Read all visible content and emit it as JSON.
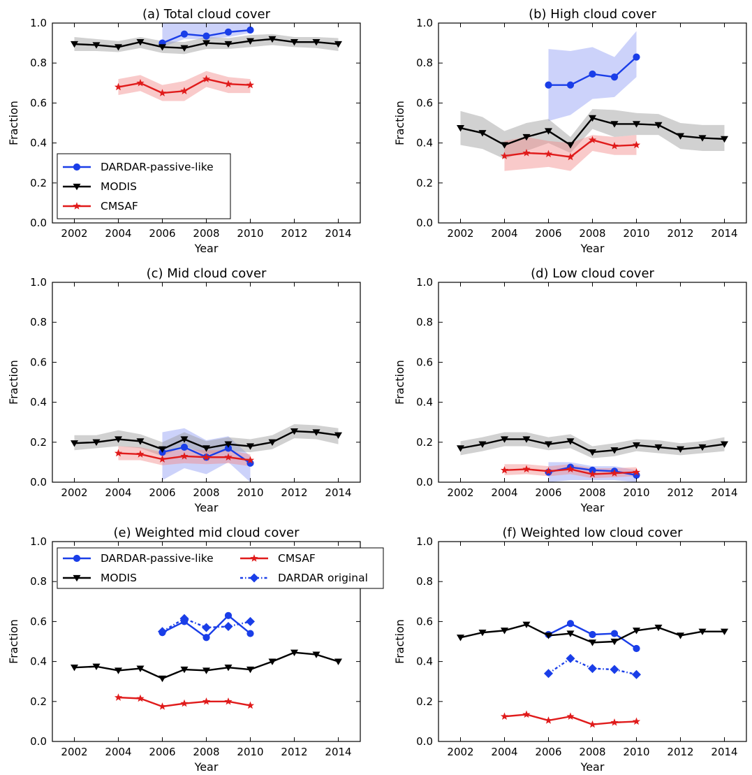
{
  "colors": {
    "dardar": "#1a3ee8",
    "modis": "#000000",
    "cmsaf": "#e01b1b",
    "dardar_band": "#8f9cf5",
    "modis_band": "#9a9a9a",
    "cmsaf_band": "#f28a8a"
  },
  "y_ticks": [
    "0.0",
    "0.2",
    "0.4",
    "0.6",
    "0.8",
    "1.0"
  ],
  "x_ticks": [
    "2002",
    "2004",
    "2006",
    "2008",
    "2010",
    "2012",
    "2014"
  ],
  "legend_top": {
    "dardar": "DARDAR-passive-like",
    "modis": "MODIS",
    "cmsaf": "CMSAF"
  },
  "legend_bottom": {
    "dardar": "DARDAR-passive-like",
    "modis": "MODIS",
    "cmsaf": "CMSAF",
    "dardar_original": "DARDAR original"
  },
  "chart_data": [
    {
      "type": "line",
      "title": "(a) Total cloud cover",
      "xlabel": "Year",
      "ylabel": "Fraction",
      "xlim": [
        2001,
        2015
      ],
      "ylim": [
        0,
        1
      ],
      "legend": "lower-left",
      "series": [
        {
          "name": "DARDAR-passive-like",
          "x": [
            2006,
            2007,
            2008,
            2009,
            2010
          ],
          "values": [
            0.9,
            0.945,
            0.935,
            0.955,
            0.965
          ],
          "lower": [
            0.88,
            0.92,
            0.92,
            0.93,
            0.95
          ],
          "upper": [
            1.0,
            1.0,
            1.0,
            1.0,
            1.0
          ]
        },
        {
          "name": "MODIS",
          "x": [
            2002,
            2003,
            2004,
            2005,
            2006,
            2007,
            2008,
            2009,
            2010,
            2011,
            2012,
            2013,
            2014
          ],
          "values": [
            0.895,
            0.89,
            0.88,
            0.905,
            0.88,
            0.875,
            0.9,
            0.895,
            0.91,
            0.92,
            0.905,
            0.905,
            0.895
          ],
          "lower": [
            0.86,
            0.86,
            0.855,
            0.875,
            0.85,
            0.845,
            0.87,
            0.87,
            0.88,
            0.89,
            0.88,
            0.875,
            0.86
          ],
          "upper": [
            0.93,
            0.92,
            0.91,
            0.93,
            0.91,
            0.905,
            0.93,
            0.925,
            0.94,
            0.945,
            0.93,
            0.93,
            0.925
          ]
        },
        {
          "name": "CMSAF",
          "x": [
            2004,
            2005,
            2006,
            2007,
            2008,
            2009,
            2010
          ],
          "values": [
            0.68,
            0.7,
            0.65,
            0.66,
            0.72,
            0.695,
            0.69
          ],
          "lower": [
            0.64,
            0.66,
            0.61,
            0.61,
            0.68,
            0.65,
            0.65
          ],
          "upper": [
            0.72,
            0.74,
            0.69,
            0.71,
            0.76,
            0.73,
            0.72
          ]
        }
      ]
    },
    {
      "type": "line",
      "title": "(b) High cloud cover",
      "xlabel": "Year",
      "ylabel": "Fraction",
      "xlim": [
        2001,
        2015
      ],
      "ylim": [
        0,
        1
      ],
      "series": [
        {
          "name": "DARDAR-passive-like",
          "x": [
            2006,
            2007,
            2008,
            2009,
            2010
          ],
          "values": [
            0.69,
            0.69,
            0.745,
            0.73,
            0.83
          ],
          "lower": [
            0.51,
            0.54,
            0.62,
            0.63,
            0.73
          ],
          "upper": [
            0.87,
            0.86,
            0.88,
            0.83,
            0.96
          ]
        },
        {
          "name": "MODIS",
          "x": [
            2002,
            2003,
            2004,
            2005,
            2006,
            2007,
            2008,
            2009,
            2010,
            2011,
            2012,
            2013,
            2014
          ],
          "values": [
            0.475,
            0.45,
            0.39,
            0.43,
            0.46,
            0.39,
            0.525,
            0.495,
            0.495,
            0.49,
            0.435,
            0.425,
            0.42
          ],
          "lower": [
            0.39,
            0.37,
            0.32,
            0.36,
            0.4,
            0.35,
            0.47,
            0.43,
            0.44,
            0.44,
            0.37,
            0.36,
            0.36
          ],
          "upper": [
            0.56,
            0.53,
            0.46,
            0.5,
            0.52,
            0.43,
            0.57,
            0.565,
            0.55,
            0.545,
            0.5,
            0.49,
            0.49
          ]
        },
        {
          "name": "CMSAF",
          "x": [
            2004,
            2005,
            2006,
            2007,
            2008,
            2009,
            2010
          ],
          "values": [
            0.335,
            0.35,
            0.345,
            0.33,
            0.415,
            0.385,
            0.39
          ],
          "lower": [
            0.26,
            0.27,
            0.28,
            0.26,
            0.36,
            0.34,
            0.34
          ],
          "upper": [
            0.41,
            0.43,
            0.41,
            0.4,
            0.44,
            0.43,
            0.44
          ]
        }
      ]
    },
    {
      "type": "line",
      "title": "(c) Mid cloud cover",
      "xlabel": "Year",
      "ylabel": "Fraction",
      "xlim": [
        2001,
        2015
      ],
      "ylim": [
        0,
        1
      ],
      "series": [
        {
          "name": "DARDAR-passive-like",
          "x": [
            2006,
            2007,
            2008,
            2009,
            2010
          ],
          "values": [
            0.15,
            0.175,
            0.125,
            0.17,
            0.095
          ],
          "lower": [
            0.01,
            0.07,
            0.04,
            0.1,
            0.0
          ],
          "upper": [
            0.25,
            0.27,
            0.21,
            0.23,
            0.13
          ]
        },
        {
          "name": "MODIS",
          "x": [
            2002,
            2003,
            2004,
            2005,
            2006,
            2007,
            2008,
            2009,
            2010,
            2011,
            2012,
            2013,
            2014
          ],
          "values": [
            0.195,
            0.2,
            0.215,
            0.205,
            0.165,
            0.215,
            0.17,
            0.19,
            0.18,
            0.2,
            0.255,
            0.25,
            0.235
          ],
          "lower": [
            0.16,
            0.17,
            0.18,
            0.17,
            0.13,
            0.18,
            0.14,
            0.155,
            0.15,
            0.165,
            0.22,
            0.215,
            0.19
          ],
          "upper": [
            0.235,
            0.235,
            0.26,
            0.24,
            0.2,
            0.25,
            0.205,
            0.225,
            0.215,
            0.235,
            0.29,
            0.285,
            0.27
          ]
        },
        {
          "name": "CMSAF",
          "x": [
            2004,
            2005,
            2006,
            2007,
            2008,
            2009,
            2010
          ],
          "values": [
            0.145,
            0.14,
            0.115,
            0.13,
            0.125,
            0.125,
            0.11
          ],
          "lower": [
            0.11,
            0.11,
            0.085,
            0.095,
            0.09,
            0.095,
            0.08
          ],
          "upper": [
            0.18,
            0.175,
            0.15,
            0.165,
            0.16,
            0.16,
            0.14
          ]
        }
      ]
    },
    {
      "type": "line",
      "title": "(d) Low cloud cover",
      "xlabel": "Year",
      "ylabel": "Fraction",
      "xlim": [
        2001,
        2015
      ],
      "ylim": [
        0,
        1
      ],
      "series": [
        {
          "name": "DARDAR-passive-like",
          "x": [
            2006,
            2007,
            2008,
            2009,
            2010
          ],
          "values": [
            0.05,
            0.075,
            0.06,
            0.055,
            0.035
          ],
          "lower": [
            0.0,
            0.01,
            0.01,
            0.01,
            0.0
          ],
          "upper": [
            0.1,
            0.1,
            0.08,
            0.08,
            0.06
          ]
        },
        {
          "name": "MODIS",
          "x": [
            2002,
            2003,
            2004,
            2005,
            2006,
            2007,
            2008,
            2009,
            2010,
            2011,
            2012,
            2013,
            2014
          ],
          "values": [
            0.17,
            0.19,
            0.215,
            0.215,
            0.19,
            0.205,
            0.15,
            0.16,
            0.185,
            0.175,
            0.165,
            0.175,
            0.19
          ],
          "lower": [
            0.135,
            0.155,
            0.18,
            0.18,
            0.16,
            0.17,
            0.12,
            0.13,
            0.155,
            0.145,
            0.135,
            0.145,
            0.155
          ],
          "upper": [
            0.205,
            0.225,
            0.25,
            0.25,
            0.225,
            0.24,
            0.18,
            0.195,
            0.215,
            0.21,
            0.195,
            0.205,
            0.225
          ]
        },
        {
          "name": "CMSAF",
          "x": [
            2004,
            2005,
            2006,
            2007,
            2008,
            2009,
            2010
          ],
          "values": [
            0.06,
            0.065,
            0.055,
            0.065,
            0.04,
            0.045,
            0.05
          ],
          "lower": [
            0.035,
            0.04,
            0.03,
            0.04,
            0.02,
            0.025,
            0.03
          ],
          "upper": [
            0.09,
            0.09,
            0.08,
            0.09,
            0.07,
            0.07,
            0.075
          ]
        }
      ]
    },
    {
      "type": "line",
      "title": "(e) Weighted mid cloud cover",
      "xlabel": "Year",
      "ylabel": "Fraction",
      "xlim": [
        2001,
        2015
      ],
      "ylim": [
        0,
        1
      ],
      "legend": "top",
      "series": [
        {
          "name": "DARDAR-passive-like",
          "x": [
            2006,
            2007,
            2008,
            2009,
            2010
          ],
          "values": [
            0.545,
            0.6,
            0.52,
            0.63,
            0.54
          ]
        },
        {
          "name": "MODIS",
          "x": [
            2002,
            2003,
            2004,
            2005,
            2006,
            2007,
            2008,
            2009,
            2010,
            2011,
            2012,
            2013,
            2014
          ],
          "values": [
            0.37,
            0.375,
            0.355,
            0.365,
            0.315,
            0.36,
            0.355,
            0.37,
            0.36,
            0.4,
            0.445,
            0.435,
            0.4
          ]
        },
        {
          "name": "CMSAF",
          "x": [
            2004,
            2005,
            2006,
            2007,
            2008,
            2009,
            2010
          ],
          "values": [
            0.22,
            0.215,
            0.175,
            0.19,
            0.2,
            0.2,
            0.18
          ]
        },
        {
          "name": "DARDAR original",
          "x": [
            2006,
            2007,
            2008,
            2009,
            2010
          ],
          "values": [
            0.55,
            0.615,
            0.57,
            0.575,
            0.6
          ]
        }
      ]
    },
    {
      "type": "line",
      "title": "(f) Weighted low cloud cover",
      "xlabel": "Year",
      "ylabel": "Fraction",
      "xlim": [
        2001,
        2015
      ],
      "ylim": [
        0,
        1
      ],
      "series": [
        {
          "name": "DARDAR-passive-like",
          "x": [
            2006,
            2007,
            2008,
            2009,
            2010
          ],
          "values": [
            0.535,
            0.59,
            0.535,
            0.54,
            0.465
          ]
        },
        {
          "name": "MODIS",
          "x": [
            2002,
            2003,
            2004,
            2005,
            2006,
            2007,
            2008,
            2009,
            2010,
            2011,
            2012,
            2013,
            2014
          ],
          "values": [
            0.52,
            0.545,
            0.555,
            0.585,
            0.53,
            0.54,
            0.495,
            0.5,
            0.555,
            0.57,
            0.53,
            0.55,
            0.55
          ]
        },
        {
          "name": "CMSAF",
          "x": [
            2004,
            2005,
            2006,
            2007,
            2008,
            2009,
            2010
          ],
          "values": [
            0.125,
            0.135,
            0.105,
            0.125,
            0.085,
            0.095,
            0.1
          ]
        },
        {
          "name": "DARDAR original",
          "x": [
            2006,
            2007,
            2008,
            2009,
            2010
          ],
          "values": [
            0.34,
            0.415,
            0.365,
            0.36,
            0.335
          ]
        }
      ]
    }
  ]
}
